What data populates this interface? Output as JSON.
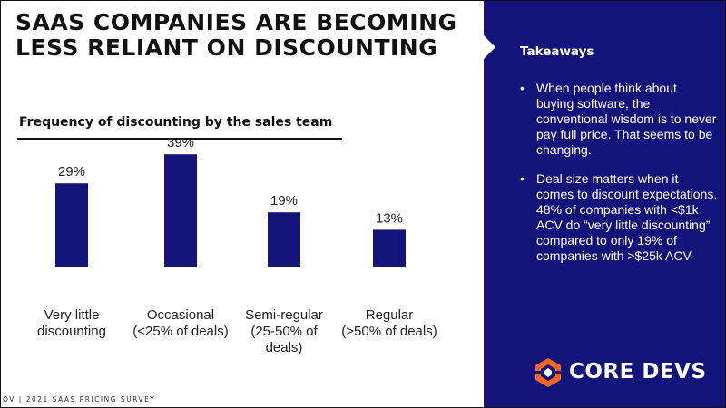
{
  "slide": {
    "title": "SAAS COMPANIES ARE BECOMING LESS RELIANT ON DISCOUNTING",
    "footer": "OV | 2021 SAAS PRICING SURVEY"
  },
  "chart_data": {
    "type": "bar",
    "title": "Frequency of discounting by the sales team",
    "xlabel": "",
    "ylabel": "",
    "categories": [
      "Very little discounting",
      "Occasional (<25% of deals)",
      "Semi-regular (25-50% of deals)",
      "Regular (>50% of deals)"
    ],
    "category_lines": [
      [
        "Very little",
        "discounting"
      ],
      [
        "Occasional",
        "(<25% of deals)"
      ],
      [
        "Semi-regular",
        "(25-50% of",
        "deals)"
      ],
      [
        "Regular",
        "(>50% of deals)"
      ]
    ],
    "values": [
      29,
      39,
      19,
      13
    ],
    "value_labels": [
      "29%",
      "39%",
      "19%",
      "13%"
    ],
    "ylim": [
      0,
      40
    ],
    "grid": false,
    "bar_color": "#13137a"
  },
  "takeaways": {
    "title": "Takeaways",
    "bullet_char": "•",
    "items": [
      "When people think about buying software, the conventional wisdom is to never pay full price. That seems to be changing.",
      "Deal size matters when it comes to discount expectations. 48% of companies with <$1k ACV do “very little discounting” compared to only 19% of companies with >$25k ACV."
    ]
  },
  "logo": {
    "text": "CORE DEVS",
    "icon": "core-devs-logo-icon",
    "accent_color": "#f26522"
  },
  "colors": {
    "panel": "#13137a",
    "bar": "#13137a",
    "text": "#111111"
  }
}
